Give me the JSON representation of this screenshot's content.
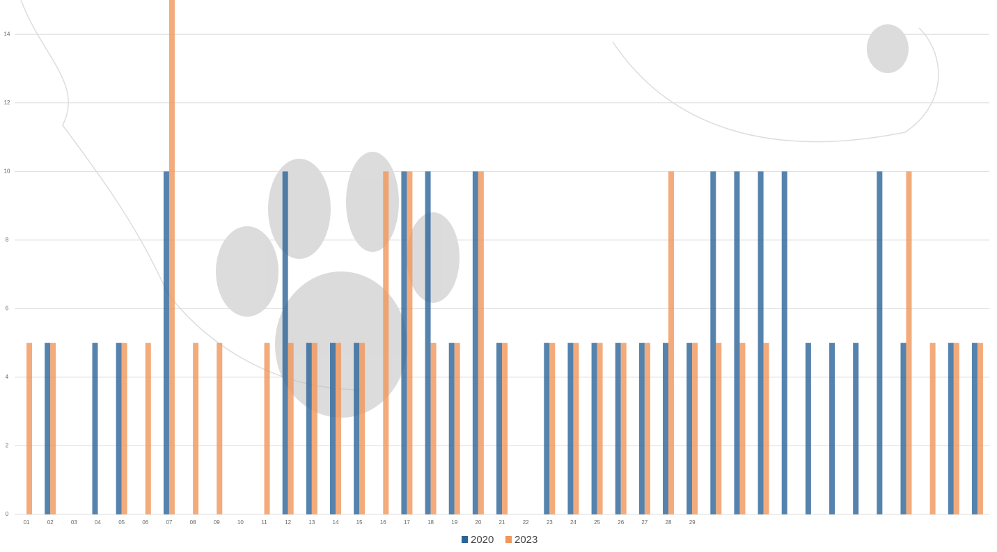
{
  "chart_data": {
    "type": "bar",
    "categories": [
      "01",
      "02",
      "03",
      "04",
      "05",
      "06",
      "07",
      "08",
      "09",
      "10",
      "11",
      "12",
      "13",
      "14",
      "15",
      "16",
      "17",
      "18",
      "19",
      "20",
      "21",
      "22",
      "23",
      "24",
      "25",
      "26",
      "27",
      "28",
      "29",
      null,
      null,
      null,
      null,
      null,
      null,
      null,
      null,
      null,
      null,
      null,
      null
    ],
    "series": [
      {
        "name": "2020",
        "color": "#2b6498",
        "values": [
          null,
          5,
          null,
          5,
          5,
          null,
          10,
          null,
          null,
          null,
          null,
          10,
          5,
          5,
          5,
          null,
          10,
          10,
          5,
          10,
          5,
          null,
          5,
          5,
          5,
          5,
          5,
          5,
          5,
          10,
          10,
          10,
          10,
          5,
          5,
          5,
          10,
          5,
          null,
          5,
          5
        ]
      },
      {
        "name": "2023",
        "color": "#f0965a",
        "values": [
          5,
          5,
          null,
          null,
          5,
          5,
          15,
          5,
          5,
          null,
          5,
          5,
          5,
          5,
          5,
          10,
          10,
          5,
          5,
          10,
          5,
          null,
          5,
          5,
          5,
          5,
          5,
          10,
          5,
          5,
          5,
          5,
          null,
          null,
          null,
          null,
          null,
          10,
          5,
          5,
          5
        ]
      }
    ],
    "ylim": [
      0,
      15
    ],
    "yticks": [
      0,
      2,
      4,
      6,
      8,
      10,
      12,
      14
    ],
    "grid": true,
    "legend": "bottom"
  }
}
